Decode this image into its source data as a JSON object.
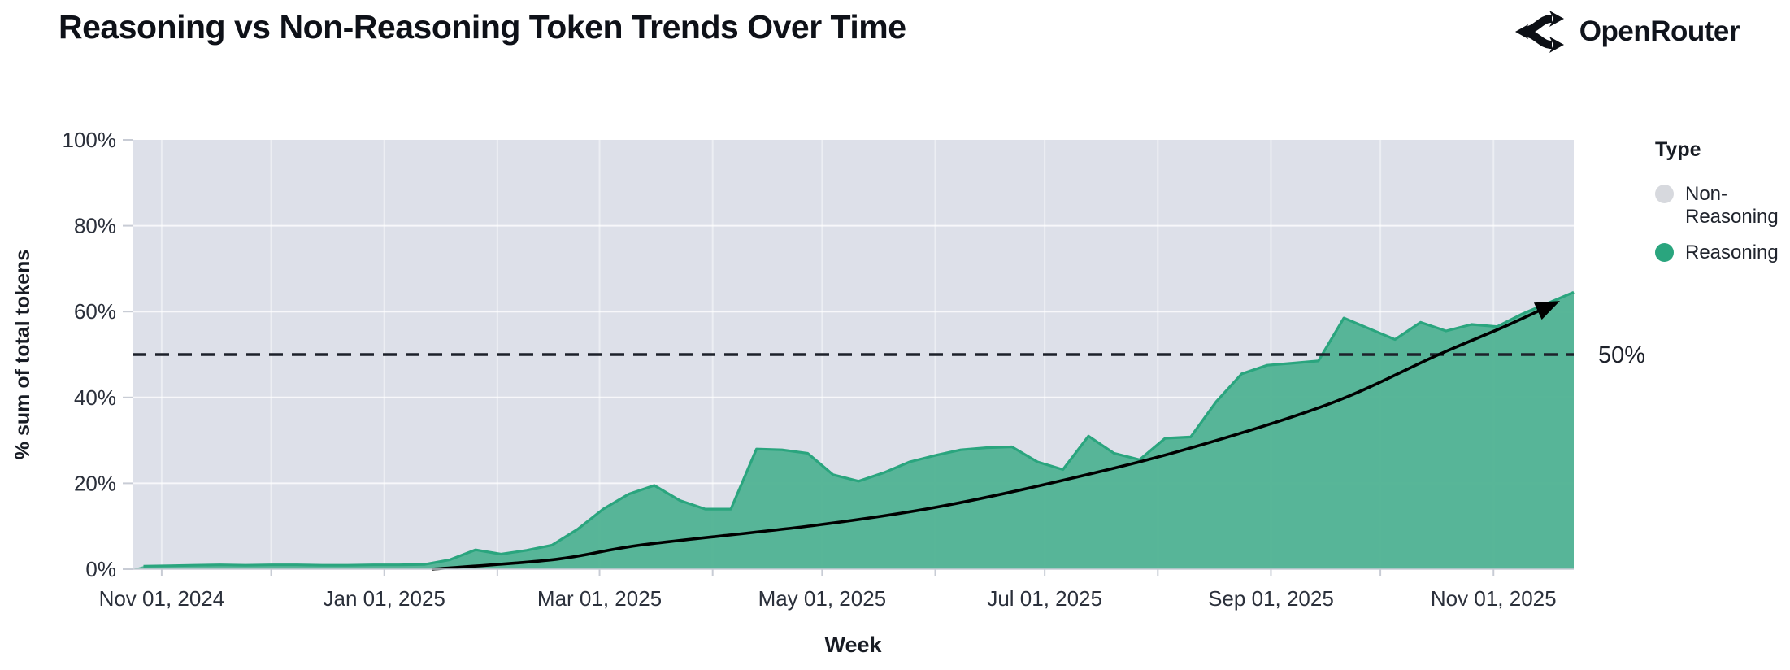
{
  "header": {
    "title": "Reasoning vs Non-Reasoning Token Trends Over Time",
    "brand": "OpenRouter"
  },
  "chart_data": {
    "type": "area",
    "stacked_percent": true,
    "title": "Reasoning vs Non-Reasoning Token Trends Over Time",
    "xlabel": "Week",
    "ylabel": "% sum of total tokens",
    "ylim": [
      0,
      100
    ],
    "x_domain": [
      "2024-10-24",
      "2025-11-23"
    ],
    "grid": "on",
    "legend_position": "right",
    "legend": {
      "title": "Type",
      "items": [
        {
          "label": "Non-Reasoning",
          "color": "#d7d9de"
        },
        {
          "label": "Reasoning",
          "color": "#2aa57e"
        }
      ]
    },
    "y_ticks": [
      {
        "label": "0%",
        "value": 0
      },
      {
        "label": "20%",
        "value": 20
      },
      {
        "label": "40%",
        "value": 40
      },
      {
        "label": "60%",
        "value": 60
      },
      {
        "label": "80%",
        "value": 80
      },
      {
        "label": "100%",
        "value": 100
      }
    ],
    "x_ticks": [
      {
        "label": "Nov 01, 2024",
        "date": "2024-11-01"
      },
      {
        "label": "Jan 01, 2025",
        "date": "2025-01-01"
      },
      {
        "label": "Mar 01, 2025",
        "date": "2025-03-01"
      },
      {
        "label": "May 01, 2025",
        "date": "2025-05-01"
      },
      {
        "label": "Jul 01, 2025",
        "date": "2025-07-01"
      },
      {
        "label": "Sep 01, 2025",
        "date": "2025-09-01"
      },
      {
        "label": "Nov 01, 2025",
        "date": "2025-11-01"
      }
    ],
    "reference_line": {
      "value": 50,
      "label": "50%"
    },
    "series": [
      {
        "name": "Reasoning",
        "weeks": [
          "2024-10-27",
          "2024-11-03",
          "2024-11-10",
          "2024-11-17",
          "2024-11-24",
          "2024-12-01",
          "2024-12-08",
          "2024-12-15",
          "2024-12-22",
          "2024-12-29",
          "2025-01-05",
          "2025-01-12",
          "2025-01-19",
          "2025-01-26",
          "2025-02-02",
          "2025-02-09",
          "2025-02-16",
          "2025-02-23",
          "2025-03-02",
          "2025-03-09",
          "2025-03-16",
          "2025-03-23",
          "2025-03-30",
          "2025-04-06",
          "2025-04-13",
          "2025-04-20",
          "2025-04-27",
          "2025-05-04",
          "2025-05-11",
          "2025-05-18",
          "2025-05-25",
          "2025-06-01",
          "2025-06-08",
          "2025-06-15",
          "2025-06-22",
          "2025-06-29",
          "2025-07-06",
          "2025-07-13",
          "2025-07-20",
          "2025-07-27",
          "2025-08-03",
          "2025-08-10",
          "2025-08-17",
          "2025-08-24",
          "2025-08-31",
          "2025-09-07",
          "2025-09-14",
          "2025-09-21",
          "2025-09-28",
          "2025-10-05",
          "2025-10-12",
          "2025-10-19",
          "2025-10-26",
          "2025-11-02",
          "2025-11-09",
          "2025-11-16",
          "2025-11-23"
        ],
        "values": [
          0.7,
          0.8,
          0.9,
          1.0,
          0.9,
          1.0,
          1.0,
          0.9,
          0.9,
          1.0,
          1.0,
          1.1,
          2.2,
          4.5,
          3.5,
          4.4,
          5.6,
          9.3,
          14,
          17.5,
          19.5,
          16,
          14,
          14,
          28,
          27.8,
          27,
          22,
          20.5,
          22.5,
          25,
          26.5,
          27.8,
          28.3,
          28.5,
          25,
          23.2,
          31,
          27,
          25.5,
          30.5,
          30.8,
          39,
          45.5,
          47.5,
          48,
          48.5,
          58.5,
          56,
          53.5,
          57.5,
          55.5,
          57,
          56.5,
          59.5,
          62,
          64.5
        ]
      },
      {
        "name": "Non-Reasoning",
        "note": "remainder to 100%"
      }
    ],
    "trend_arrow": {
      "x": [
        "2025-01-14",
        "2025-02-17",
        "2025-03-13",
        "2025-04-29",
        "2025-06-01",
        "2025-07-05",
        "2025-08-09",
        "2025-09-17",
        "2025-10-17",
        "2025-11-04",
        "2025-11-18"
      ],
      "values": [
        0,
        2.3,
        5.7,
        10.2,
        14.4,
        20.5,
        28,
        38.5,
        50,
        56.5,
        62
      ]
    },
    "colors": {
      "plot_bg": "#dde0e9",
      "gridline": "#ffffff",
      "reasoning_fill": "#53b495",
      "reasoning_stroke": "#2aa57e",
      "non_reasoning": "#d7d9de",
      "dashed_line": "#1d212a",
      "trend_line": "#000000",
      "tick_text": "#2b303b"
    }
  }
}
